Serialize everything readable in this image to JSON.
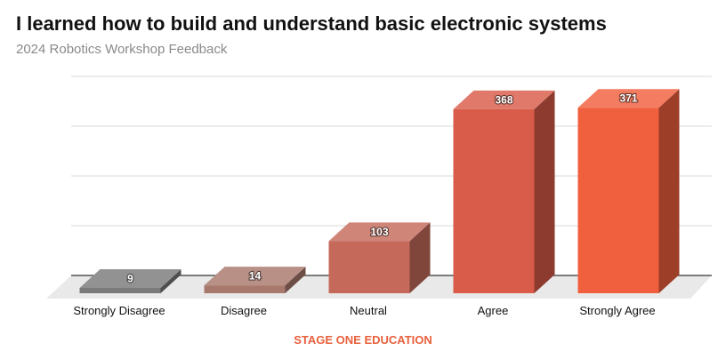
{
  "title": "I learned how to build and understand basic electronic systems",
  "subtitle": "2024 Robotics Workshop Feedback",
  "footer": "STAGE ONE EDUCATION",
  "colors": {
    "footer": "#e8603c",
    "grid": "#d8d8d8",
    "floor": "#e9e9e9",
    "label": "#111111",
    "value_label": "#ffffff"
  },
  "chart_data": {
    "type": "bar",
    "style": "3d-column",
    "categories": [
      "Strongly Disagree",
      "Disagree",
      "Neutral",
      "Agree",
      "Strongly Agree"
    ],
    "values": [
      9,
      14,
      103,
      368,
      371
    ],
    "bar_colors": [
      "#7a7a7a",
      "#a8786c",
      "#c56a5a",
      "#d95b49",
      "#f05f3e"
    ],
    "ylim": [
      0,
      400
    ],
    "grid": true,
    "data_labels": true
  }
}
